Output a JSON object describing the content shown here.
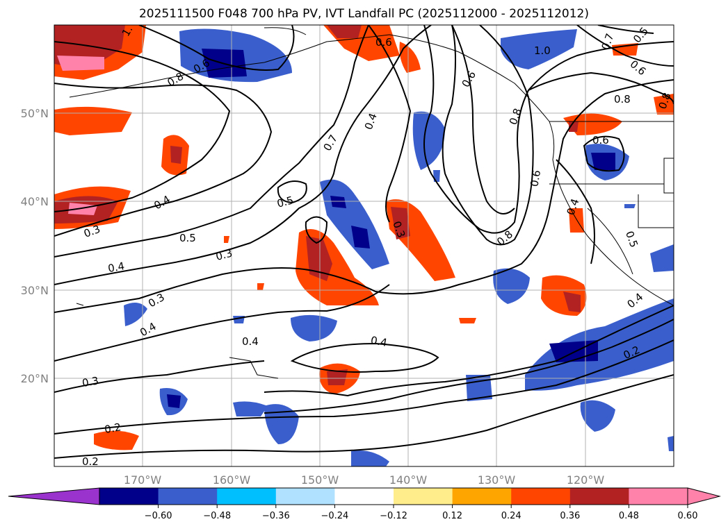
{
  "title": "2025111500 F048 700 hPa PV, IVT Landfall PC (2025112000 - 2025112012)",
  "map": {
    "lat_ticks": [
      "50°N",
      "40°N",
      "30°N",
      "20°N"
    ],
    "lon_ticks": [
      "170°W",
      "160°W",
      "150°W",
      "140°W",
      "130°W",
      "120°W"
    ]
  },
  "contour_labels": [
    "1.",
    "0.8",
    "0.6",
    "0.6",
    "0.7",
    "0.4",
    "0.6",
    "1.0",
    "0.7",
    "0.5",
    "0.6",
    "0.8",
    "0.8",
    "0.4",
    "0.4",
    "0.5",
    "0.3",
    "0.5",
    "0.3",
    "0.4",
    "0.3",
    "0.3",
    "0.4",
    "0.4",
    "0.4",
    "0.3",
    "0.2",
    "0.2",
    "0.8",
    "0.6",
    "0.6",
    "0.4",
    "0.5",
    "0.2",
    "0.8"
  ],
  "colorbar": {
    "ticks": [
      "−0.60",
      "−0.48",
      "−0.36",
      "−0.24",
      "−0.12",
      "0.12",
      "0.24",
      "0.36",
      "0.48",
      "0.60"
    ],
    "colors": [
      "#9a32cd",
      "#00008b",
      "#3a5fcd",
      "#00bfff",
      "#b0e2ff",
      "#ffffff",
      "#ffec8b",
      "#ffa500",
      "#ff4500",
      "#b22222",
      "#ff82ab",
      "#ff82ab"
    ]
  }
}
